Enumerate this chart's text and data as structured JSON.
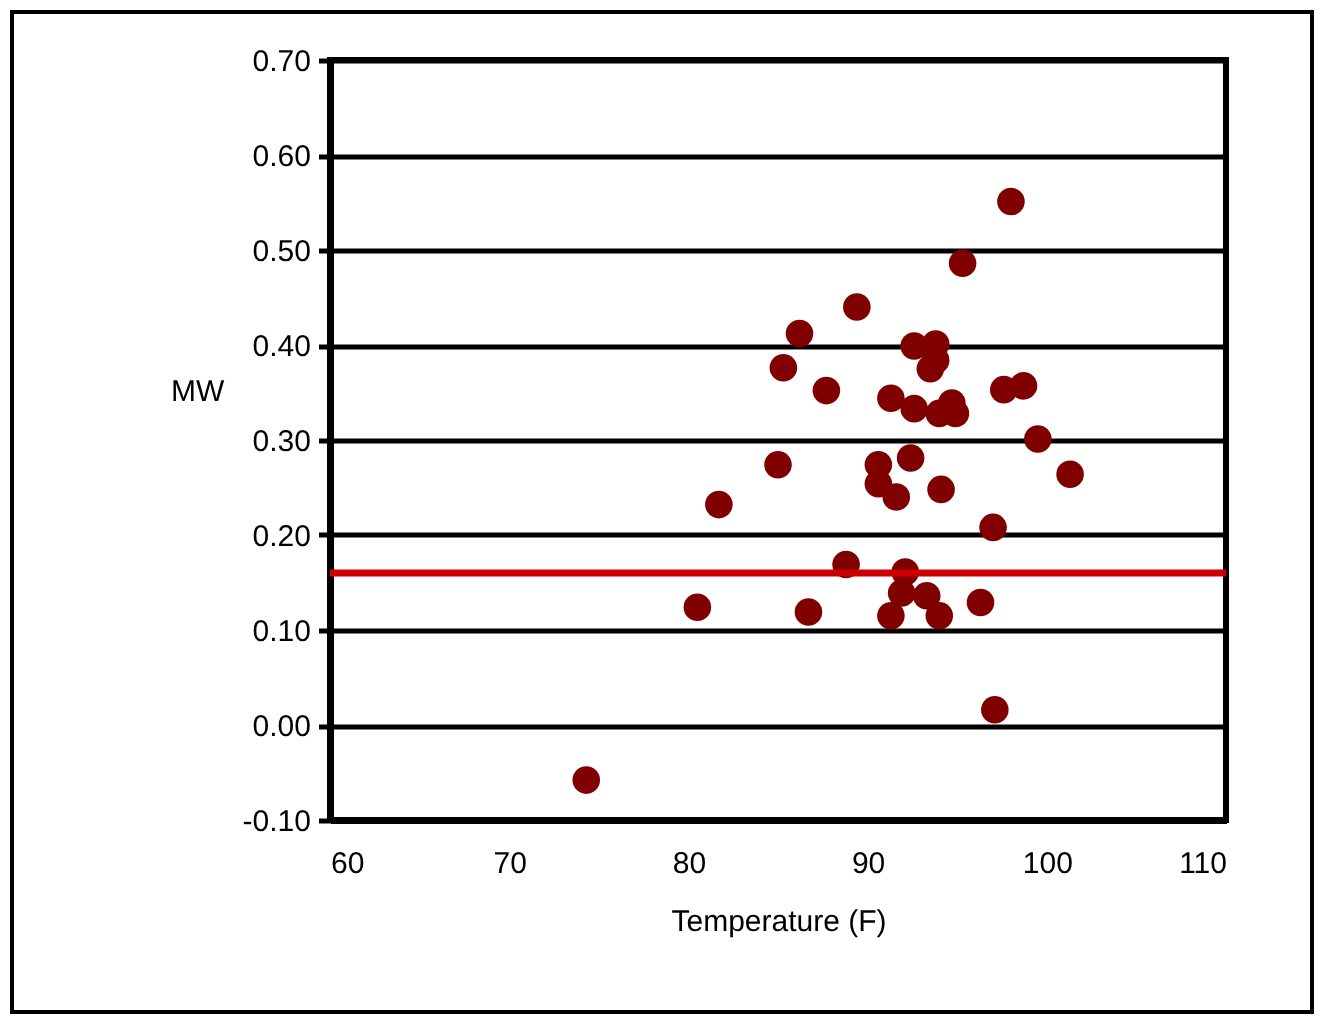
{
  "chart_data": {
    "type": "scatter",
    "xlabel": "Temperature (F)",
    "ylabel": "MW",
    "x": [
      74.3,
      80.5,
      81.7,
      85.0,
      85.3,
      86.2,
      86.7,
      87.7,
      88.8,
      89.4,
      90.6,
      90.6,
      91.3,
      91.3,
      91.6,
      92.1,
      91.9,
      92.4,
      92.6,
      92.6,
      93.3,
      93.5,
      93.8,
      93.8,
      94.0,
      94.0,
      94.1,
      94.7,
      94.9,
      95.3,
      96.3,
      97.0,
      97.1,
      97.6,
      98.0,
      98.7,
      99.5,
      101.3
    ],
    "series": [
      {
        "color": "#800000",
        "values": [
          -0.058,
          0.124,
          0.232,
          0.274,
          0.376,
          0.412,
          0.119,
          0.352,
          0.169,
          0.44,
          0.274,
          0.254,
          0.344,
          0.115,
          0.24,
          0.161,
          0.139,
          0.281,
          0.399,
          0.333,
          0.136,
          0.375,
          0.401,
          0.384,
          0.328,
          0.115,
          0.248,
          0.339,
          0.328,
          0.486,
          0.129,
          0.208,
          0.016,
          0.353,
          0.551,
          0.357,
          0.301,
          0.264
        ]
      }
    ],
    "xlim": [
      60,
      110
    ],
    "xticks": [
      60,
      70,
      80,
      90,
      100,
      110
    ],
    "ylim": [
      -0.1,
      0.7
    ],
    "yticks": [
      {
        "value": -0.1,
        "label": "-0.10"
      },
      {
        "value": 0,
        "label": "0.00"
      },
      {
        "value": 0.1,
        "label": "0.10"
      },
      {
        "value": 0.2,
        "label": "0.20"
      },
      {
        "value": 0.3,
        "label": "0.30"
      },
      {
        "value": 0.4,
        "label": "0.40"
      },
      {
        "value": 0.5,
        "label": "0.50"
      },
      {
        "value": 0.6,
        "label": "0.60"
      },
      {
        "value": 0.7,
        "label": "0.70"
      }
    ],
    "ref_lines": [
      {
        "axis": "y",
        "value": 0.16,
        "color": "#cc0000"
      }
    ],
    "grid": "y",
    "marker": "circle",
    "legend": false
  }
}
